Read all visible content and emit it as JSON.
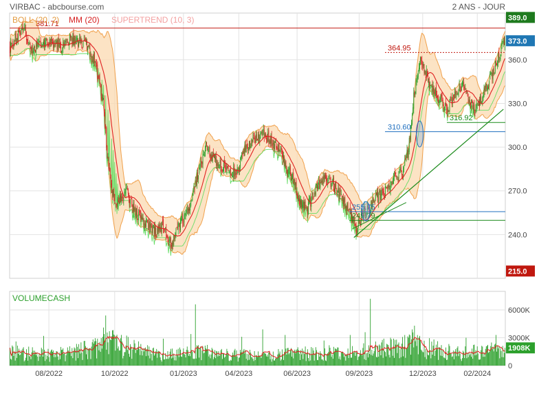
{
  "header": {
    "title": "VIRBAC - abcbourse.com",
    "period": "2 ANS - JOUR"
  },
  "legend": {
    "boll": "BOLL (20, 2)",
    "mm": "MM (20)",
    "supertrend": "SUPERTREND (10, 3)"
  },
  "colors": {
    "candle_up": "#2ca02c",
    "candle_down": "#d62728",
    "bollinger_fill": "#fbd9b0",
    "bollinger_line": "#f0a04b",
    "mm_line": "#e02020",
    "supertrend_line": "#66dd66",
    "volume_bar": "#2ca02c",
    "volume_avg": "#e02020",
    "trendline": "#1a8a1a",
    "level_blue": "#1f6fbf",
    "badge_dark_green": "#1e7a1e",
    "badge_green": "#2ca02c",
    "badge_blue": "#1f77b4",
    "badge_red": "#c0180f"
  },
  "chart_data": [
    {
      "type": "candlestick",
      "title": "VIRBAC",
      "x_ticks": [
        "08/2022",
        "10/2022",
        "01/2023",
        "04/2023",
        "06/2023",
        "09/2023",
        "12/2023",
        "02/2024"
      ],
      "y_ticks": [
        240.0,
        270.0,
        300.0,
        330.0,
        360.0
      ],
      "ylim": [
        210,
        392
      ],
      "grid": true,
      "right_axis_badges": [
        {
          "label": "389.0",
          "value": 389.0,
          "color": "dark-green"
        },
        {
          "label": "373.0",
          "value": 373.0,
          "color": "blue"
        },
        {
          "label": "215.0",
          "value": 215.0,
          "color": "red"
        }
      ],
      "horizontal_levels": [
        {
          "label": "381.71",
          "value": 381.71,
          "style": "solid",
          "color": "red"
        },
        {
          "label": "364.95",
          "value": 364.95,
          "style": "dotted",
          "color": "red"
        },
        {
          "label": "316.92",
          "value": 316.92,
          "style": "solid",
          "color": "green"
        },
        {
          "label": "310.60",
          "value": 310.6,
          "style": "solid",
          "color": "blue"
        },
        {
          "label": "255.75",
          "value": 255.75,
          "style": "solid",
          "color": "blue"
        },
        {
          "label": "249.79",
          "value": 249.79,
          "style": "solid",
          "color": "green"
        }
      ],
      "trendline": {
        "from": {
          "index": 460,
          "value": 238
        },
        "to": {
          "index": 660,
          "value": 326
        }
      },
      "price_anchors": [
        {
          "i": 0,
          "v": 368
        },
        {
          "i": 10,
          "v": 376
        },
        {
          "i": 20,
          "v": 380
        },
        {
          "i": 30,
          "v": 365
        },
        {
          "i": 40,
          "v": 372
        },
        {
          "i": 55,
          "v": 373
        },
        {
          "i": 70,
          "v": 368
        },
        {
          "i": 80,
          "v": 375
        },
        {
          "i": 95,
          "v": 372
        },
        {
          "i": 105,
          "v": 370
        },
        {
          "i": 115,
          "v": 355
        },
        {
          "i": 125,
          "v": 330
        },
        {
          "i": 130,
          "v": 295
        },
        {
          "i": 137,
          "v": 268
        },
        {
          "i": 145,
          "v": 262
        },
        {
          "i": 155,
          "v": 272
        },
        {
          "i": 165,
          "v": 258
        },
        {
          "i": 175,
          "v": 252
        },
        {
          "i": 185,
          "v": 245
        },
        {
          "i": 195,
          "v": 242
        },
        {
          "i": 205,
          "v": 246
        },
        {
          "i": 215,
          "v": 233
        },
        {
          "i": 225,
          "v": 245
        },
        {
          "i": 238,
          "v": 255
        },
        {
          "i": 250,
          "v": 280
        },
        {
          "i": 262,
          "v": 300
        },
        {
          "i": 275,
          "v": 290
        },
        {
          "i": 290,
          "v": 285
        },
        {
          "i": 302,
          "v": 282
        },
        {
          "i": 315,
          "v": 300
        },
        {
          "i": 327,
          "v": 305
        },
        {
          "i": 340,
          "v": 310
        },
        {
          "i": 350,
          "v": 303
        },
        {
          "i": 362,
          "v": 297
        },
        {
          "i": 370,
          "v": 285
        },
        {
          "i": 380,
          "v": 278
        },
        {
          "i": 388,
          "v": 262
        },
        {
          "i": 398,
          "v": 258
        },
        {
          "i": 408,
          "v": 270
        },
        {
          "i": 420,
          "v": 280
        },
        {
          "i": 432,
          "v": 275
        },
        {
          "i": 443,
          "v": 265
        },
        {
          "i": 455,
          "v": 255
        },
        {
          "i": 463,
          "v": 243
        },
        {
          "i": 472,
          "v": 255
        },
        {
          "i": 480,
          "v": 258
        },
        {
          "i": 490,
          "v": 265
        },
        {
          "i": 502,
          "v": 270
        },
        {
          "i": 515,
          "v": 278
        },
        {
          "i": 525,
          "v": 283
        },
        {
          "i": 533,
          "v": 298
        },
        {
          "i": 540,
          "v": 335
        },
        {
          "i": 548,
          "v": 360
        },
        {
          "i": 556,
          "v": 350
        },
        {
          "i": 565,
          "v": 340
        },
        {
          "i": 575,
          "v": 333
        },
        {
          "i": 585,
          "v": 325
        },
        {
          "i": 595,
          "v": 338
        },
        {
          "i": 605,
          "v": 342
        },
        {
          "i": 615,
          "v": 330
        },
        {
          "i": 625,
          "v": 327
        },
        {
          "i": 635,
          "v": 338
        },
        {
          "i": 645,
          "v": 350
        },
        {
          "i": 655,
          "v": 365
        },
        {
          "i": 662,
          "v": 373
        }
      ],
      "n_sessions": 663
    },
    {
      "type": "bar",
      "title": "VOLUMECASH",
      "y_ticks": [
        "0",
        "3000K",
        "6000K"
      ],
      "ylim": [
        0,
        8000
      ],
      "last_value_badge": "1908K",
      "volume_profile": [
        {
          "i": 0,
          "v": 1600
        },
        {
          "i": 60,
          "v": 1300
        },
        {
          "i": 125,
          "v": 2400
        },
        {
          "i": 137,
          "v": 2800
        },
        {
          "i": 200,
          "v": 1200
        },
        {
          "i": 260,
          "v": 1700
        },
        {
          "i": 330,
          "v": 1200
        },
        {
          "i": 400,
          "v": 1500
        },
        {
          "i": 470,
          "v": 1700
        },
        {
          "i": 540,
          "v": 2600
        },
        {
          "i": 600,
          "v": 1500
        },
        {
          "i": 662,
          "v": 1908
        }
      ],
      "volume_spikes": [
        {
          "i": 8,
          "v": 2600
        },
        {
          "i": 45,
          "v": 3200
        },
        {
          "i": 95,
          "v": 2500
        },
        {
          "i": 125,
          "v": 4100
        },
        {
          "i": 128,
          "v": 5400
        },
        {
          "i": 137,
          "v": 3800
        },
        {
          "i": 205,
          "v": 2900
        },
        {
          "i": 242,
          "v": 3400
        },
        {
          "i": 248,
          "v": 6600
        },
        {
          "i": 310,
          "v": 3100
        },
        {
          "i": 338,
          "v": 3900
        },
        {
          "i": 368,
          "v": 3300
        },
        {
          "i": 420,
          "v": 2700
        },
        {
          "i": 455,
          "v": 3300
        },
        {
          "i": 475,
          "v": 3600
        },
        {
          "i": 482,
          "v": 7200
        },
        {
          "i": 500,
          "v": 2900
        },
        {
          "i": 538,
          "v": 3900
        },
        {
          "i": 541,
          "v": 4300
        },
        {
          "i": 548,
          "v": 3200
        },
        {
          "i": 610,
          "v": 3000
        },
        {
          "i": 650,
          "v": 3300
        },
        {
          "i": 662,
          "v": 1908
        }
      ]
    }
  ]
}
